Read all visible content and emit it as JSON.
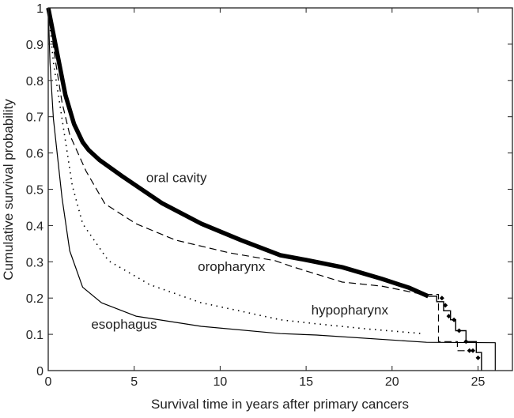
{
  "chart_data": {
    "type": "line",
    "title": "",
    "xlabel": "Survival time in years after primary cancers",
    "ylabel": "Cumulative survival probability",
    "xlim": [
      0,
      27
    ],
    "ylim": [
      0,
      1
    ],
    "grid": false,
    "legend": "none (inline curve labels)",
    "x_ticks": [
      0,
      5,
      10,
      15,
      20,
      25
    ],
    "x_tick_labels": [
      "0",
      "5",
      "10",
      "15",
      "20",
      "25"
    ],
    "y_ticks": [
      0,
      0.1,
      0.2,
      0.3,
      0.4,
      0.5,
      0.6,
      0.7,
      0.8,
      0.9,
      1
    ],
    "y_tick_labels": [
      "0",
      "0.1",
      "0.2",
      "0.3",
      "0.4",
      "0.5",
      "0.6",
      "0.7",
      "0.8",
      "0.9",
      "1"
    ],
    "series": [
      {
        "name": "oral cavity",
        "style": "thick-solid",
        "color": "#000000",
        "x": [
          0,
          0.5,
          1,
          1.5,
          2,
          2.35,
          3,
          4.3,
          6.6,
          8.9,
          11.2,
          13.5,
          15,
          17.1,
          19.4,
          21,
          22.1,
          22.6,
          22.6,
          23.0,
          23.0,
          23.4,
          23.4,
          23.7,
          23.7,
          24.3,
          24.3,
          24.9,
          24.9,
          25.2,
          25.2
        ],
        "y": [
          1,
          0.88,
          0.76,
          0.68,
          0.63,
          0.608,
          0.58,
          0.536,
          0.462,
          0.405,
          0.36,
          0.318,
          0.305,
          0.285,
          0.253,
          0.228,
          0.205,
          0.205,
          0.19,
          0.19,
          0.165,
          0.165,
          0.14,
          0.14,
          0.11,
          0.11,
          0.08,
          0.08,
          0.05,
          0.05,
          0
        ],
        "censored_x": [
          22.9,
          23.1,
          23.3,
          23.6,
          23.9,
          24.3,
          24.5,
          24.7,
          25.0
        ],
        "censored_y": [
          0.2,
          0.18,
          0.15,
          0.14,
          0.11,
          0.08,
          0.055,
          0.055,
          0.035
        ]
      },
      {
        "name": "oropharynx",
        "style": "dashed",
        "color": "#000000",
        "x": [
          0,
          0.4,
          0.8,
          1.25,
          2.2,
          3.3,
          5.1,
          7.4,
          10.5,
          13.2,
          14.1,
          17.1,
          19.4,
          21.8,
          22.7,
          22.7,
          23.8,
          23.8,
          24.5
        ],
        "y": [
          1,
          0.86,
          0.74,
          0.65,
          0.55,
          0.46,
          0.405,
          0.36,
          0.325,
          0.303,
          0.288,
          0.244,
          0.233,
          0.21,
          0.21,
          0.08,
          0.08,
          0.055,
          0.055
        ]
      },
      {
        "name": "hypopharynx",
        "style": "dotted",
        "color": "#000000",
        "x": [
          0,
          0.3,
          0.8,
          1.4,
          2.0,
          3.5,
          5.9,
          8.9,
          11,
          13.5,
          15.6,
          18.5,
          21.8
        ],
        "y": [
          1,
          0.85,
          0.695,
          0.51,
          0.405,
          0.303,
          0.237,
          0.187,
          0.166,
          0.14,
          0.129,
          0.115,
          0.102
        ]
      },
      {
        "name": "esophagus",
        "style": "solid",
        "color": "#000000",
        "x": [
          0,
          0.1,
          0.3,
          0.8,
          1.25,
          2.0,
          3.1,
          5.1,
          8.9,
          13.5,
          15.6,
          22.0,
          26.0,
          26.0
        ],
        "y": [
          1,
          0.85,
          0.695,
          0.477,
          0.33,
          0.23,
          0.187,
          0.15,
          0.122,
          0.102,
          0.098,
          0.078,
          0.077,
          0
        ]
      }
    ],
    "annotations": [
      {
        "text": "oral cavity",
        "x": 5.7,
        "y": 0.52
      },
      {
        "text": "oropharynx",
        "x": 8.7,
        "y": 0.275
      },
      {
        "text": "hypopharynx",
        "x": 15.3,
        "y": 0.155
      },
      {
        "text": "esophagus",
        "x": 2.5,
        "y": 0.115
      }
    ]
  }
}
